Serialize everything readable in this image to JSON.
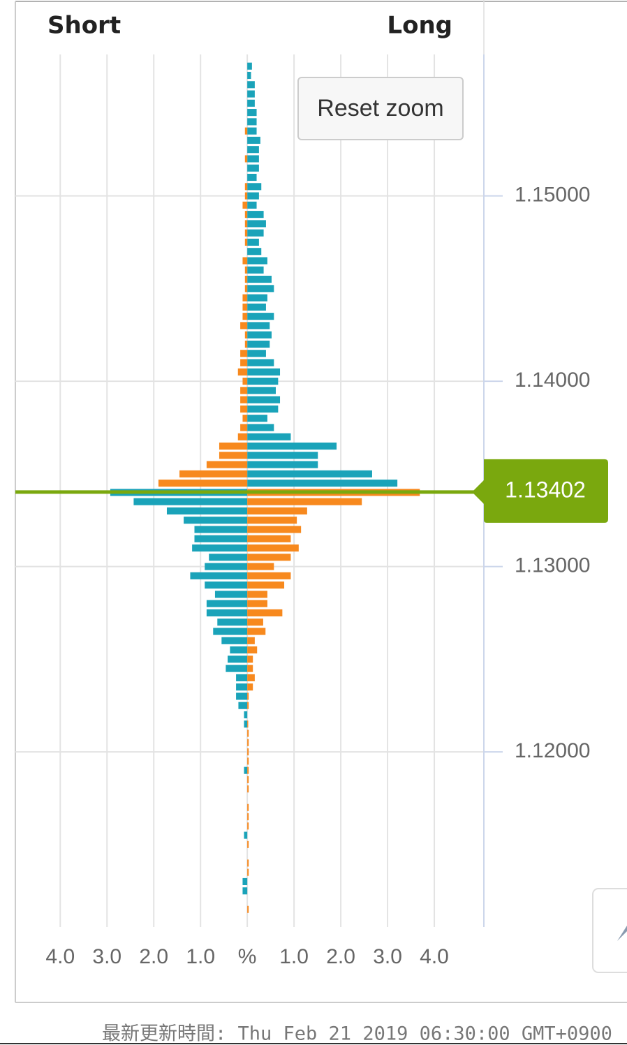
{
  "chart_data": {
    "type": "orderbook",
    "short_label": "Short",
    "long_label": "Long",
    "reset_button": "Reset zoom",
    "footer": "最新更新時間: Thu Feb 21 2019 06:30:00 GMT+0900",
    "current_price": 1.13402,
    "current_color": "#7aa80e",
    "prices": [
      1.157,
      1.1565,
      1.156,
      1.1555,
      1.155,
      1.1545,
      1.154,
      1.1535,
      1.153,
      1.1525,
      1.152,
      1.1515,
      1.151,
      1.1505,
      1.15,
      1.1495,
      1.149,
      1.1485,
      1.148,
      1.1475,
      1.147,
      1.1465,
      1.146,
      1.1455,
      1.145,
      1.1445,
      1.144,
      1.1435,
      1.143,
      1.1425,
      1.142,
      1.1415,
      1.141,
      1.1405,
      1.14,
      1.1395,
      1.139,
      1.1385,
      1.138,
      1.1375,
      1.137,
      1.1365,
      1.136,
      1.1355,
      1.135,
      1.1345,
      1.134,
      1.1335,
      1.133,
      1.1325,
      1.132,
      1.1315,
      1.131,
      1.1305,
      1.13,
      1.1295,
      1.129,
      1.1285,
      1.128,
      1.1275,
      1.127,
      1.1265,
      1.126,
      1.1255,
      1.125,
      1.1245,
      1.124,
      1.1235,
      1.123,
      1.1225,
      1.122,
      1.1215,
      1.121,
      1.1205,
      1.12,
      1.1195,
      1.119,
      1.1185,
      1.118,
      1.1175,
      1.117,
      1.1165,
      1.116,
      1.1155,
      1.115,
      1.1145,
      1.114,
      1.1135,
      1.113,
      1.1125,
      1.112,
      1.1115
    ],
    "series": [
      {
        "color": "#1aa3b9",
        "side_above": "long",
        "values": [
          0.1,
          0.08,
          0.16,
          0.16,
          0.16,
          0.2,
          0.2,
          0.2,
          0.28,
          0.25,
          0.25,
          0.25,
          0.2,
          0.3,
          0.25,
          0.2,
          0.35,
          0.4,
          0.35,
          0.25,
          0.3,
          0.43,
          0.35,
          0.52,
          0.57,
          0.43,
          0.4,
          0.57,
          0.48,
          0.52,
          0.48,
          0.4,
          0.57,
          0.7,
          0.66,
          0.61,
          0.7,
          0.66,
          0.43,
          0.57,
          0.93,
          1.91,
          1.51,
          1.51,
          2.67,
          3.21,
          2.93,
          2.43,
          1.72,
          1.36,
          1.13,
          1.13,
          1.18,
          0.82,
          0.91,
          1.22,
          0.91,
          0.69,
          0.87,
          0.87,
          0.64,
          0.73,
          0.55,
          0.37,
          0.42,
          0.46,
          0.24,
          0.24,
          0.24,
          0.19,
          0.07,
          0.07,
          0,
          0,
          0,
          0,
          0.07,
          0,
          0,
          0,
          0,
          0,
          0,
          0.07,
          0,
          0,
          0,
          0,
          0.1,
          0.1,
          0,
          0
        ]
      },
      {
        "color": "#f7891e",
        "side_above": "short",
        "values": [
          0,
          0,
          0,
          0,
          0,
          0,
          0,
          0.05,
          0,
          0,
          0.05,
          0,
          0,
          0.05,
          0.05,
          0.1,
          0.05,
          0.05,
          0.05,
          0.05,
          0,
          0.1,
          0.05,
          0.05,
          0.05,
          0.1,
          0.1,
          0.1,
          0.15,
          0.05,
          0.05,
          0.15,
          0.15,
          0.2,
          0.1,
          0.15,
          0.15,
          0.15,
          0.1,
          0.15,
          0.2,
          0.6,
          0.6,
          0.87,
          1.45,
          1.9,
          3.69,
          2.45,
          1.28,
          1.06,
          1.15,
          0.93,
          1.1,
          0.93,
          0.57,
          0.93,
          0.79,
          0.43,
          0.43,
          0.75,
          0.34,
          0.39,
          0.16,
          0.21,
          0.12,
          0.12,
          0.16,
          0.12,
          0.03,
          0.03,
          0,
          0.02,
          0.03,
          0.03,
          0.03,
          0.03,
          0.03,
          0.03,
          0.03,
          0,
          0.03,
          0.03,
          0.03,
          0,
          0.03,
          0,
          0.03,
          0.03,
          0,
          0,
          0,
          0.03
        ]
      }
    ],
    "xlim": [
      -4.96,
      5.06
    ],
    "xticks": [
      {
        "value": -4,
        "label": "4.0"
      },
      {
        "value": -3,
        "label": "3.0"
      },
      {
        "value": -2,
        "label": "2.0"
      },
      {
        "value": -1,
        "label": "1.0"
      },
      {
        "value": 0,
        "label": "%"
      },
      {
        "value": 1,
        "label": "1.0"
      },
      {
        "value": 2,
        "label": "2.0"
      },
      {
        "value": 3,
        "label": "3.0"
      },
      {
        "value": 4,
        "label": "4.0"
      }
    ],
    "ylim": [
      1.11055,
      1.15763
    ],
    "yticks": [
      {
        "value": 1.15,
        "label": "1.15000"
      },
      {
        "value": 1.14,
        "label": "1.14000"
      },
      {
        "value": 1.13,
        "label": "1.13000"
      },
      {
        "value": 1.12,
        "label": "1.12000"
      }
    ],
    "grid": true
  }
}
